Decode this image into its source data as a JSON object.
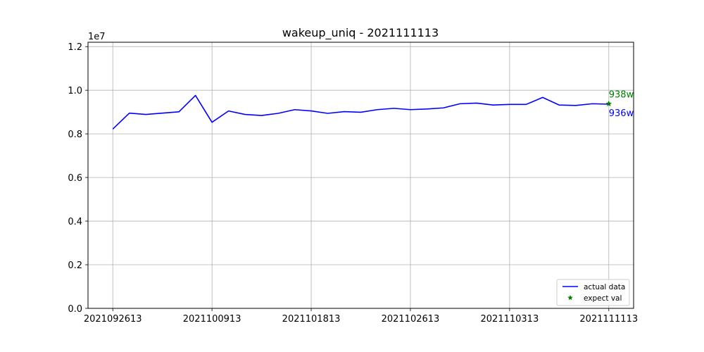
{
  "chart_data": {
    "type": "line",
    "title": "wakeup_uniq - 2021111113",
    "xlabel": "",
    "ylabel": "",
    "y_scale_label": "1e7",
    "ylim": [
      0,
      12200000
    ],
    "y_ticks": [
      {
        "value": 0,
        "label": "0.0"
      },
      {
        "value": 2000000,
        "label": "0.2"
      },
      {
        "value": 4000000,
        "label": "0.4"
      },
      {
        "value": 6000000,
        "label": "0.6"
      },
      {
        "value": 8000000,
        "label": "0.8"
      },
      {
        "value": 10000000,
        "label": "1.0"
      },
      {
        "value": 12000000,
        "label": "1.2"
      }
    ],
    "x_tick_labels": [
      "2021092613",
      "2021100913",
      "2021101813",
      "2021102613",
      "2021110313",
      "2021111113"
    ],
    "x_tick_indices": [
      0,
      6,
      12,
      18,
      24,
      30
    ],
    "grid": true,
    "legend_position": "lower-right",
    "series": [
      {
        "name": "actual data",
        "color": "#0000ff",
        "style": "line",
        "values": [
          8220000,
          8950000,
          8890000,
          8950000,
          9010000,
          9760000,
          8530000,
          9050000,
          8890000,
          8840000,
          8940000,
          9110000,
          9050000,
          8940000,
          9020000,
          8990000,
          9110000,
          9170000,
          9110000,
          9140000,
          9190000,
          9380000,
          9410000,
          9320000,
          9350000,
          9350000,
          9670000,
          9320000,
          9300000,
          9380000,
          9360000
        ]
      },
      {
        "name": "expect val",
        "color": "#008000",
        "style": "star",
        "points": [
          {
            "index": 30,
            "value": 9380000
          }
        ]
      }
    ],
    "annotations": [
      {
        "text": "938w",
        "color": "#008000",
        "index": 30,
        "value": 9380000,
        "position": "above"
      },
      {
        "text": "936w",
        "color": "#0000ff",
        "index": 30,
        "value": 9360000,
        "position": "below"
      }
    ]
  }
}
